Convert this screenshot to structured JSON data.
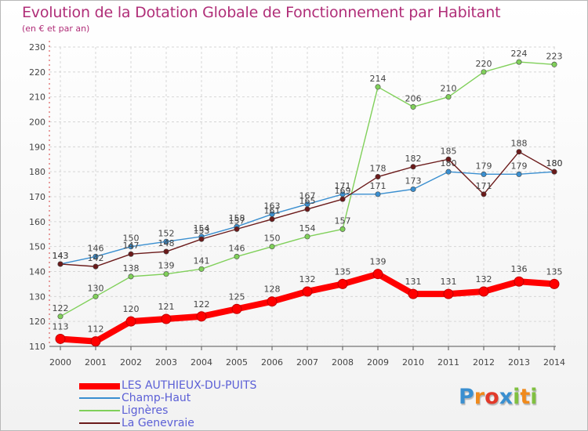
{
  "chart_data": {
    "type": "line",
    "title": "Evolution de la Dotation Globale de Fonctionnement par Habitant",
    "subtitle": "(en € et par an)",
    "xlabel": "",
    "ylabel": "",
    "ylim": [
      110,
      230
    ],
    "yticks": [
      110,
      120,
      130,
      140,
      150,
      160,
      170,
      180,
      190,
      200,
      210,
      220,
      230
    ],
    "grid": true,
    "legend_position": "bottom-left",
    "x": [
      "2000",
      "2001",
      "2002",
      "2003",
      "2004",
      "2005",
      "2006",
      "2007",
      "2008",
      "2009",
      "2010",
      "2011",
      "2012",
      "2013",
      "2014"
    ],
    "series": [
      {
        "name": "LES AUTHIEUX-DU-PUITS",
        "color": "#ff0000",
        "values": [
          113,
          112,
          120,
          121,
          122,
          125,
          128,
          132,
          135,
          139,
          131,
          131,
          132,
          136,
          135
        ]
      },
      {
        "name": "Champ-Haut",
        "color": "#3a8fd0",
        "values": [
          143,
          146,
          150,
          152,
          154,
          158,
          163,
          167,
          171,
          171,
          173,
          180,
          179,
          179,
          180
        ]
      },
      {
        "name": "Lignères",
        "color": "#80d05a",
        "values": [
          122,
          130,
          138,
          139,
          141,
          146,
          150,
          154,
          157,
          214,
          206,
          210,
          220,
          224,
          223
        ]
      },
      {
        "name": "La Genevraie",
        "color": "#6b1a1a",
        "values": [
          143,
          142,
          147,
          148,
          153,
          157,
          161,
          165,
          169,
          178,
          182,
          185,
          171,
          188,
          180
        ]
      }
    ]
  },
  "logo": {
    "letters": [
      "P",
      "r",
      "o",
      "x",
      "i",
      "t",
      "i"
    ]
  }
}
